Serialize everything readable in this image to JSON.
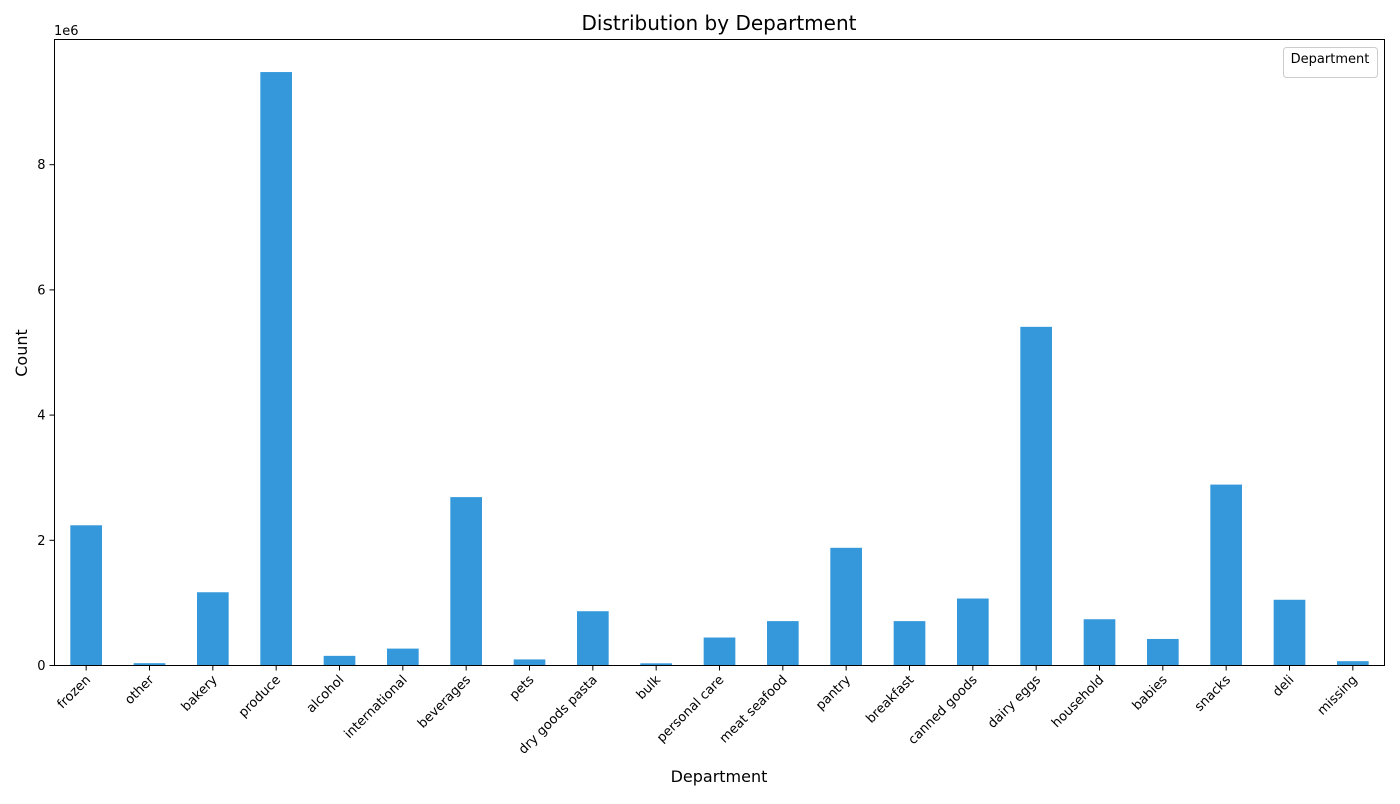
{
  "chart_data": {
    "type": "bar",
    "title": "Distribution by Department",
    "xlabel": "Department",
    "ylabel": "Count",
    "y_scale_label": "1e6",
    "ylim": [
      0,
      10000000
    ],
    "yticks": [
      0,
      2000000,
      4000000,
      6000000,
      8000000
    ],
    "ytick_labels": [
      "0",
      "2",
      "4",
      "6",
      "8"
    ],
    "legend_title": "Department",
    "legend_placement": "top-right",
    "grid": false,
    "bar_color": "#3498db",
    "categories": [
      "frozen",
      "other",
      "bakery",
      "produce",
      "alcohol",
      "international",
      "beverages",
      "pets",
      "dry goods pasta",
      "bulk",
      "personal care",
      "meat seafood",
      "pantry",
      "breakfast",
      "canned goods",
      "dairy eggs",
      "household",
      "babies",
      "snacks",
      "deli",
      "missing"
    ],
    "values": [
      2240000,
      37000,
      1170000,
      9480000,
      154000,
      270000,
      2690000,
      97000,
      867000,
      35000,
      447000,
      709000,
      1880000,
      709000,
      1070000,
      5410000,
      739000,
      424000,
      2890000,
      1050000,
      69000
    ]
  }
}
